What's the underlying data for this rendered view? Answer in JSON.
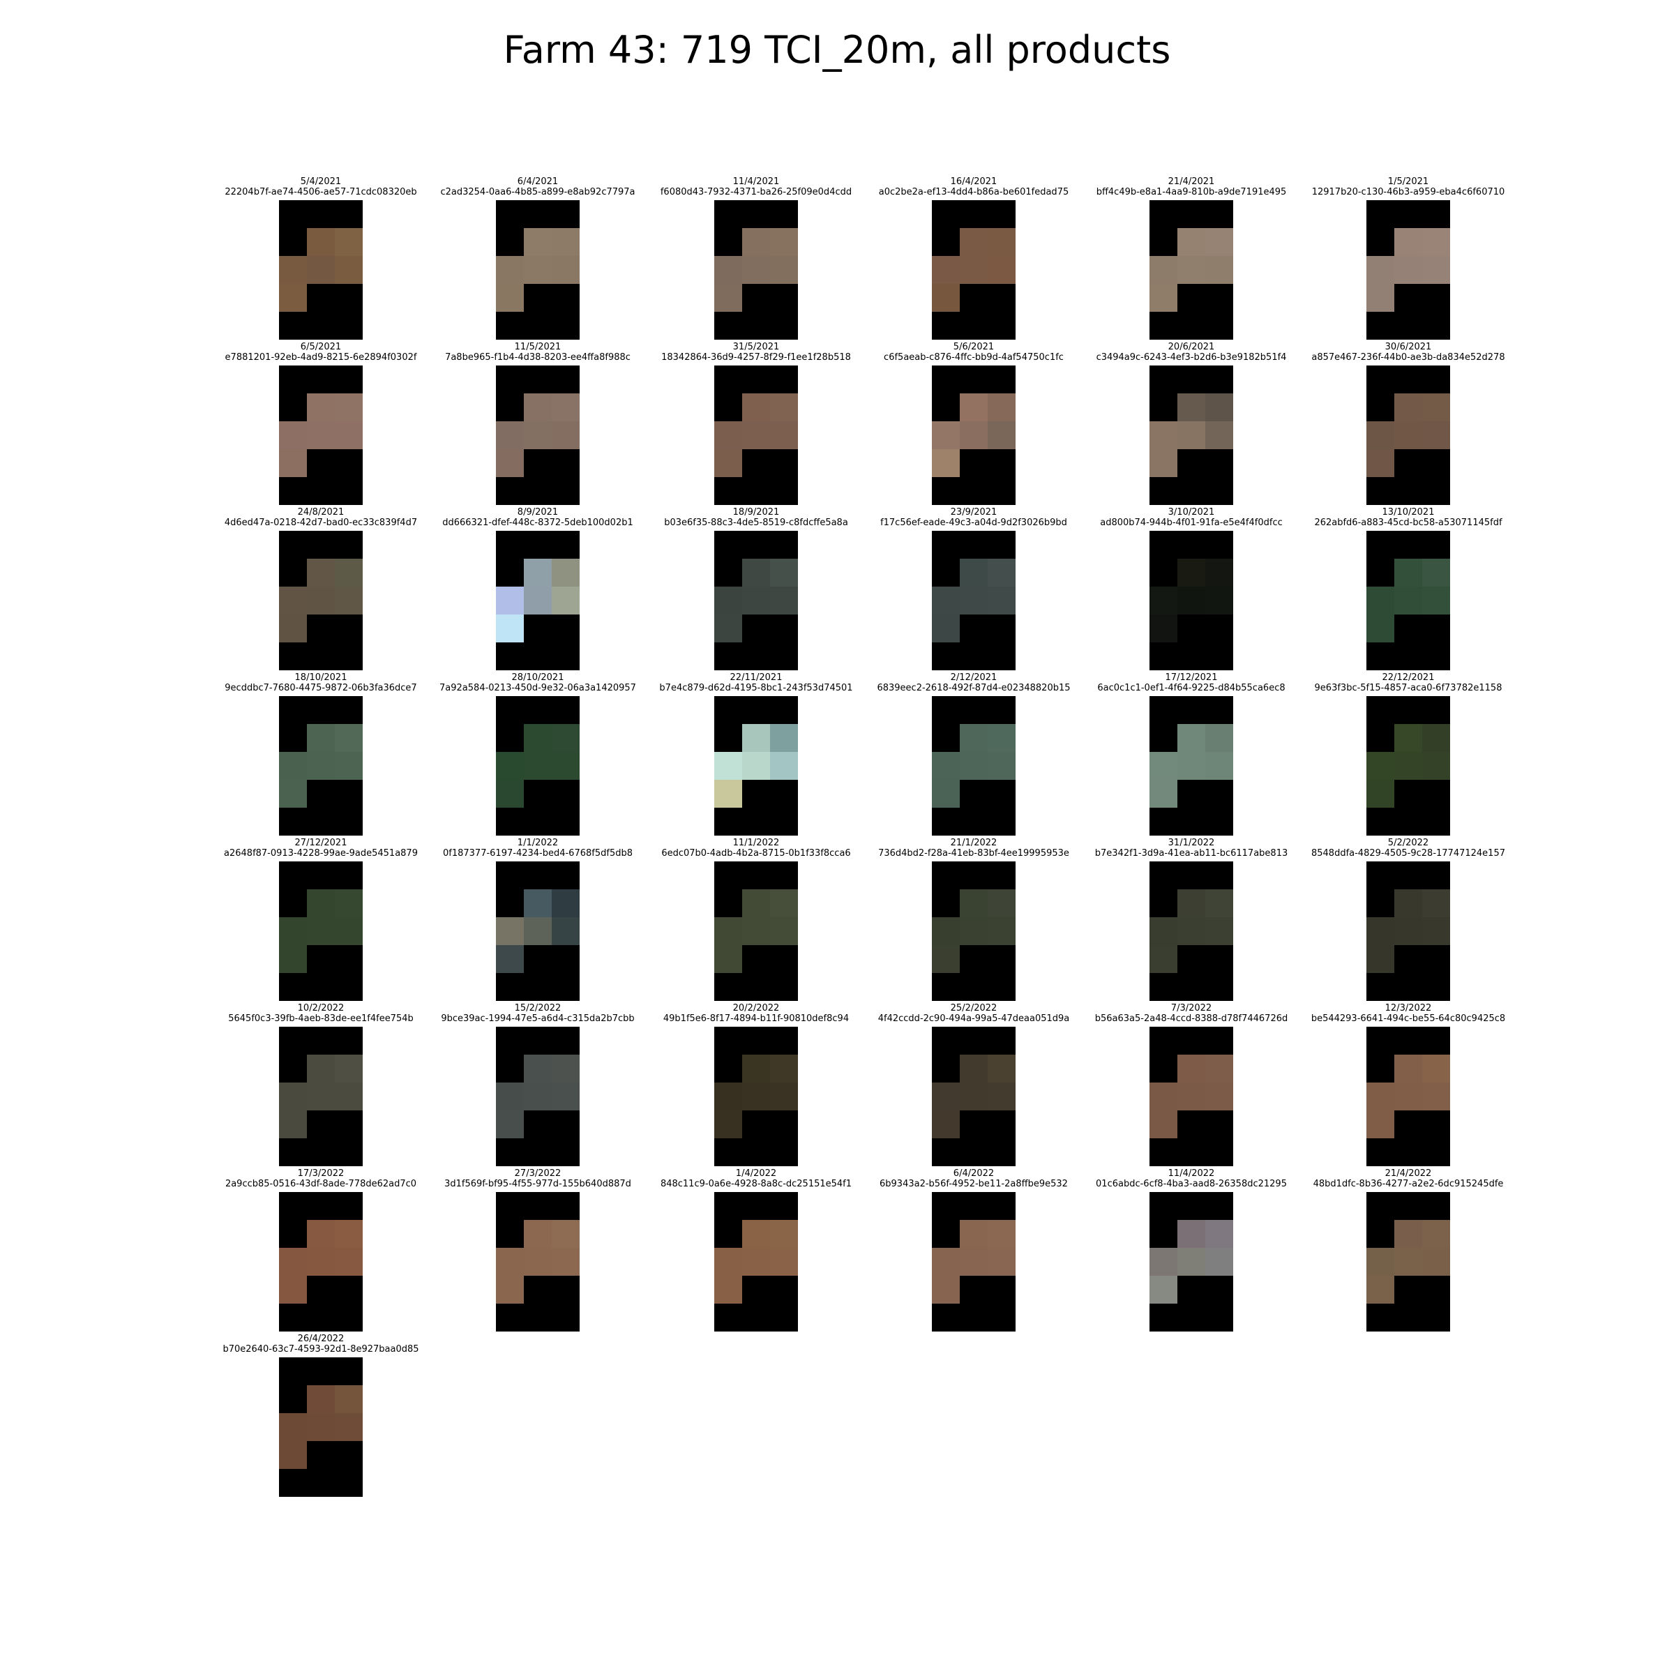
{
  "title": "Farm 43: 719 TCI_20m, all products",
  "products": [
    {
      "date": "5/4/2021",
      "id": "22204b7f-ae74-4506-ae57-71cdc08320eb",
      "colors": [
        "#7a5b40",
        "#7f6144",
        "#785a40",
        "#755841",
        "#7a5c41",
        "#7c5c40"
      ]
    },
    {
      "date": "6/4/2021",
      "id": "c2ad3254-0aa6-4b85-a899-e8ab92c7797a",
      "colors": [
        "#8f7c68",
        "#8e7b67",
        "#8a7763",
        "#8c7965",
        "#8b7864",
        "#8a7762"
      ]
    },
    {
      "date": "11/4/2021",
      "id": "f6080d43-7932-4371-ba26-25f09e0d4cdd",
      "colors": [
        "#857060",
        "#86725f",
        "#7f6b5d",
        "#826e5f",
        "#836f5e",
        "#806c5d"
      ]
    },
    {
      "date": "16/4/2021",
      "id": "a0c2be2a-ef13-4dd4-b86a-be601fedad75",
      "colors": [
        "#7a5a45",
        "#7b5a44",
        "#7a5a46",
        "#7b5a45",
        "#7b5943",
        "#77583f"
      ]
    },
    {
      "date": "21/4/2021",
      "id": "bff4c49b-e8a1-4aa9-810b-a9de7191e495",
      "colors": [
        "#958270",
        "#968373",
        "#8e7c6b",
        "#917f6d",
        "#907e6c",
        "#8f7d6a"
      ]
    },
    {
      "date": "1/5/2021",
      "id": "12917b20-c130-46b3-a959-eba4c6f60710",
      "colors": [
        "#998377",
        "#9a8478",
        "#938074",
        "#958175",
        "#968276",
        "#938075"
      ]
    },
    {
      "date": "6/5/2021",
      "id": "e7881201-92eb-4ad9-8215-6e2894f0302f",
      "colors": [
        "#8f7264",
        "#8f7466",
        "#8d7063",
        "#8e7164",
        "#8e7064",
        "#8d6f62"
      ]
    },
    {
      "date": "11/5/2021",
      "id": "7a8be965-f1b4-4d38-8203-ee4ffa8f988c",
      "colors": [
        "#877064",
        "#897366",
        "#826d62",
        "#846f63",
        "#846e62",
        "#846d60"
      ]
    },
    {
      "date": "31/5/2021",
      "id": "18342864-36d9-4257-8f29-f1ee1f28b518",
      "colors": [
        "#7f604e",
        "#806451",
        "#7c5e4f",
        "#7c5f4f",
        "#7c5f4e",
        "#7b5e4c"
      ]
    },
    {
      "date": "5/6/2021",
      "id": "c6f5aeab-c876-4ffc-bb9d-4af54750c1fc",
      "colors": [
        "#937262",
        "#866958",
        "#947666",
        "#8a6e5f",
        "#7b675a",
        "#9e8269"
      ]
    },
    {
      "date": "20/6/2021",
      "id": "c3494a9c-6243-4ef3-b2d6-b3e9182b51f4",
      "colors": [
        "#66594e",
        "#5f544a",
        "#8a7565",
        "#887463",
        "#736558",
        "#8a7463"
      ]
    },
    {
      "date": "30/6/2021",
      "id": "a857e467-236f-44b0-ae3b-da834e52d278",
      "colors": [
        "#735947",
        "#745b48",
        "#6e5646",
        "#715746",
        "#705747",
        "#6f5646"
      ]
    },
    {
      "date": "24/8/2021",
      "id": "4d6ed47a-0218-42d7-bad0-ec33c839f4d7",
      "colors": [
        "#625646",
        "#5e5a48",
        "#615444",
        "#605444",
        "#605746",
        "#605343"
      ]
    },
    {
      "date": "8/9/2021",
      "id": "dd666321-dfef-448c-8372-5deb100d02b1",
      "colors": [
        "#8fa0a8",
        "#8f9181",
        "#b0bee8",
        "#8f9ea8",
        "#9ea593",
        "#bee4f6"
      ]
    },
    {
      "date": "18/9/2021",
      "id": "b03e6f35-88c3-4de5-8519-c8fdcffe5a8a",
      "colors": [
        "#3f4843",
        "#46504b",
        "#3b443f",
        "#3e4642",
        "#3f4743",
        "#3d4540"
      ]
    },
    {
      "date": "23/9/2021",
      "id": "f17c56ef-eade-49c3-a04d-9d2f3026b9bd",
      "colors": [
        "#3d4a48",
        "#434e4d",
        "#3d4847",
        "#3e4948",
        "#3f4a49",
        "#3c4746"
      ]
    },
    {
      "date": "3/10/2021",
      "id": "ad800b74-944b-4f01-91fa-e5e4f4f0dfcc",
      "colors": [
        "#191a12",
        "#131611",
        "#141812",
        "#111510",
        "#121611",
        "#111410"
      ]
    },
    {
      "date": "13/10/2021",
      "id": "262abfd6-a883-45cd-bc58-a53071145fdf",
      "colors": [
        "#33513a",
        "#3a5542",
        "#2d4b35",
        "#314e38",
        "#32503a",
        "#2e4b36"
      ]
    },
    {
      "date": "18/10/2021",
      "id": "9ecddbc7-7680-4475-9872-06b3fa36dce7",
      "colors": [
        "#4d6452",
        "#536957",
        "#4a614f",
        "#4c6351",
        "#4d6452",
        "#4b6250"
      ]
    },
    {
      "date": "28/10/2021",
      "id": "7a92a584-0213-450d-9e32-06a3a1420957",
      "colors": [
        "#2b4a30",
        "#2f4a33",
        "#2a4a2f",
        "#2b4a30",
        "#2b4a30",
        "#2a482f"
      ]
    },
    {
      "date": "22/11/2021",
      "id": "b7e4c879-d62d-4195-8bc1-243f53d74501",
      "colors": [
        "#a8c6bc",
        "#7ea09e",
        "#c1e1d6",
        "#bad7cc",
        "#a3c6c4",
        "#c8c89c"
      ]
    },
    {
      "date": "2/12/2021",
      "id": "6839eec2-2618-492f-87d4-e02348820b15",
      "colors": [
        "#4f675a",
        "#4f6a5d",
        "#4c6458",
        "#4e665a",
        "#4e675a",
        "#4b6357"
      ]
    },
    {
      "date": "17/12/2021",
      "id": "6ac0c1c1-0ef1-4f64-9225-d84b55ca6ec8",
      "colors": [
        "#6f887a",
        "#687f72",
        "#718a7c",
        "#6f887a",
        "#6d8678",
        "#72897b"
      ]
    },
    {
      "date": "22/12/2021",
      "id": "9e63f3bc-5f15-4857-aca0-6f73782e1158",
      "colors": [
        "#364828",
        "#333f26",
        "#334626",
        "#344527",
        "#344327",
        "#324426"
      ]
    },
    {
      "date": "27/12/2021",
      "id": "a2648f87-0913-4228-99ae-9ade5451a879",
      "colors": [
        "#34472e",
        "#374830",
        "#33462d",
        "#34462e",
        "#34462e",
        "#33452d"
      ]
    },
    {
      "date": "1/1/2022",
      "id": "0f187377-6197-4234-bed4-6768f5df5db8",
      "colors": [
        "#475a61",
        "#2f3d42",
        "#777465",
        "#5d6359",
        "#374445",
        "#3d494b"
      ]
    },
    {
      "date": "11/1/2022",
      "id": "6edc07b0-4adb-4b2a-8715-0b1f33f8cca6",
      "colors": [
        "#434b37",
        "#474f3b",
        "#414935",
        "#434b37",
        "#444c38",
        "#414935"
      ]
    },
    {
      "date": "21/1/2022",
      "id": "736d4bd2-f28a-41eb-83bf-4ee19995953e",
      "colors": [
        "#3a4232",
        "#3f4536",
        "#383f2f",
        "#3a4131",
        "#3b4232",
        "#3a3f2f"
      ]
    },
    {
      "date": "31/1/2022",
      "id": "b7e342f1-3d9a-41ea-ab11-bc6117abe813",
      "colors": [
        "#3c3f32",
        "#404436",
        "#383d30",
        "#3b3f32",
        "#3c4033",
        "#3a3e31"
      ]
    },
    {
      "date": "5/2/2022",
      "id": "8548ddfa-4829-4505-9c28-17747124e157",
      "colors": [
        "#39382d",
        "#3d3c30",
        "#37362b",
        "#38372c",
        "#39382d",
        "#37362b"
      ]
    },
    {
      "date": "10/2/2022",
      "id": "5645f0c3-39fb-4aeb-83de-ee1f4fee754b",
      "colors": [
        "#4c4b40",
        "#504f44",
        "#4a4a3f",
        "#4b4b40",
        "#4c4b40",
        "#4a4a3f"
      ]
    },
    {
      "date": "15/2/2022",
      "id": "9bce39ac-1994-47e5-a6d4-c315da2b7cbb",
      "colors": [
        "#4a504d",
        "#4e524e",
        "#474d4a",
        "#494f4c",
        "#4a504d",
        "#484e4b"
      ]
    },
    {
      "date": "20/2/2022",
      "id": "49b1f5e6-8f17-4894-b11f-90810def8c94",
      "colors": [
        "#3a3423",
        "#3f3827",
        "#372f20",
        "#393222",
        "#3a3324",
        "#383121"
      ]
    },
    {
      "date": "25/2/2022",
      "id": "4f42ccdd-2c90-494a-99a5-47deaa051d9a",
      "colors": [
        "#423a2d",
        "#4a4131",
        "#423a2e",
        "#433a2e",
        "#443b2f",
        "#433a2d"
      ]
    },
    {
      "date": "7/3/2022",
      "id": "b56a63a5-2a48-4ccd-8388-d78f7446726d",
      "colors": [
        "#7d5b48",
        "#7e5e4a",
        "#7a5a47",
        "#7b5a47",
        "#7c5b48",
        "#7a5947"
      ]
    },
    {
      "date": "12/3/2022",
      "id": "be544293-6641-494c-be55-64c80c9425c8",
      "colors": [
        "#825f48",
        "#866349",
        "#805d47",
        "#815e47",
        "#825f48",
        "#805d46"
      ]
    },
    {
      "date": "17/3/2022",
      "id": "2a9ccb85-0516-43df-8ade-778de62ad7c0",
      "colors": [
        "#875940",
        "#8a5d43",
        "#855740",
        "#865840",
        "#875941",
        "#855740"
      ]
    },
    {
      "date": "27/3/2022",
      "id": "3d1f569f-bf95-4f55-977d-155b640d887d",
      "colors": [
        "#8c6850",
        "#8e6b53",
        "#8a664f",
        "#8b6750",
        "#8c6851",
        "#8a664f"
      ]
    },
    {
      "date": "1/4/2022",
      "id": "848c11c9-0a6e-4928-8a8c-dc25151e54f1",
      "colors": [
        "#8a6246",
        "#8b6548",
        "#886045",
        "#896146",
        "#8a6247",
        "#886045"
      ]
    },
    {
      "date": "6/4/2022",
      "id": "6b9343a2-b56f-4952-be11-2a8ffbe9e532",
      "colors": [
        "#896650",
        "#8b6851",
        "#87644f",
        "#886550",
        "#896651",
        "#87644f"
      ]
    },
    {
      "date": "11/4/2022",
      "id": "01c6abdc-6cf8-4ba3-aad8-26358dc21295",
      "colors": [
        "#7a7076",
        "#807880",
        "#7c7773",
        "#7f7f78",
        "#807f80",
        "#868a82"
      ]
    },
    {
      "date": "21/4/2022",
      "id": "48bd1dfc-8b36-4277-a2e2-6dc915245dfe",
      "colors": [
        "#7a5e4c",
        "#7d624b",
        "#75614a",
        "#7a6149",
        "#7b6049",
        "#79614a"
      ]
    },
    {
      "date": "26/4/2022",
      "id": "b70e2640-63c7-4593-92d1-8e927baa0d85",
      "colors": [
        "#704c38",
        "#75553c",
        "#6d4a36",
        "#6e4b37",
        "#6f4c37",
        "#6d4a36"
      ]
    }
  ]
}
